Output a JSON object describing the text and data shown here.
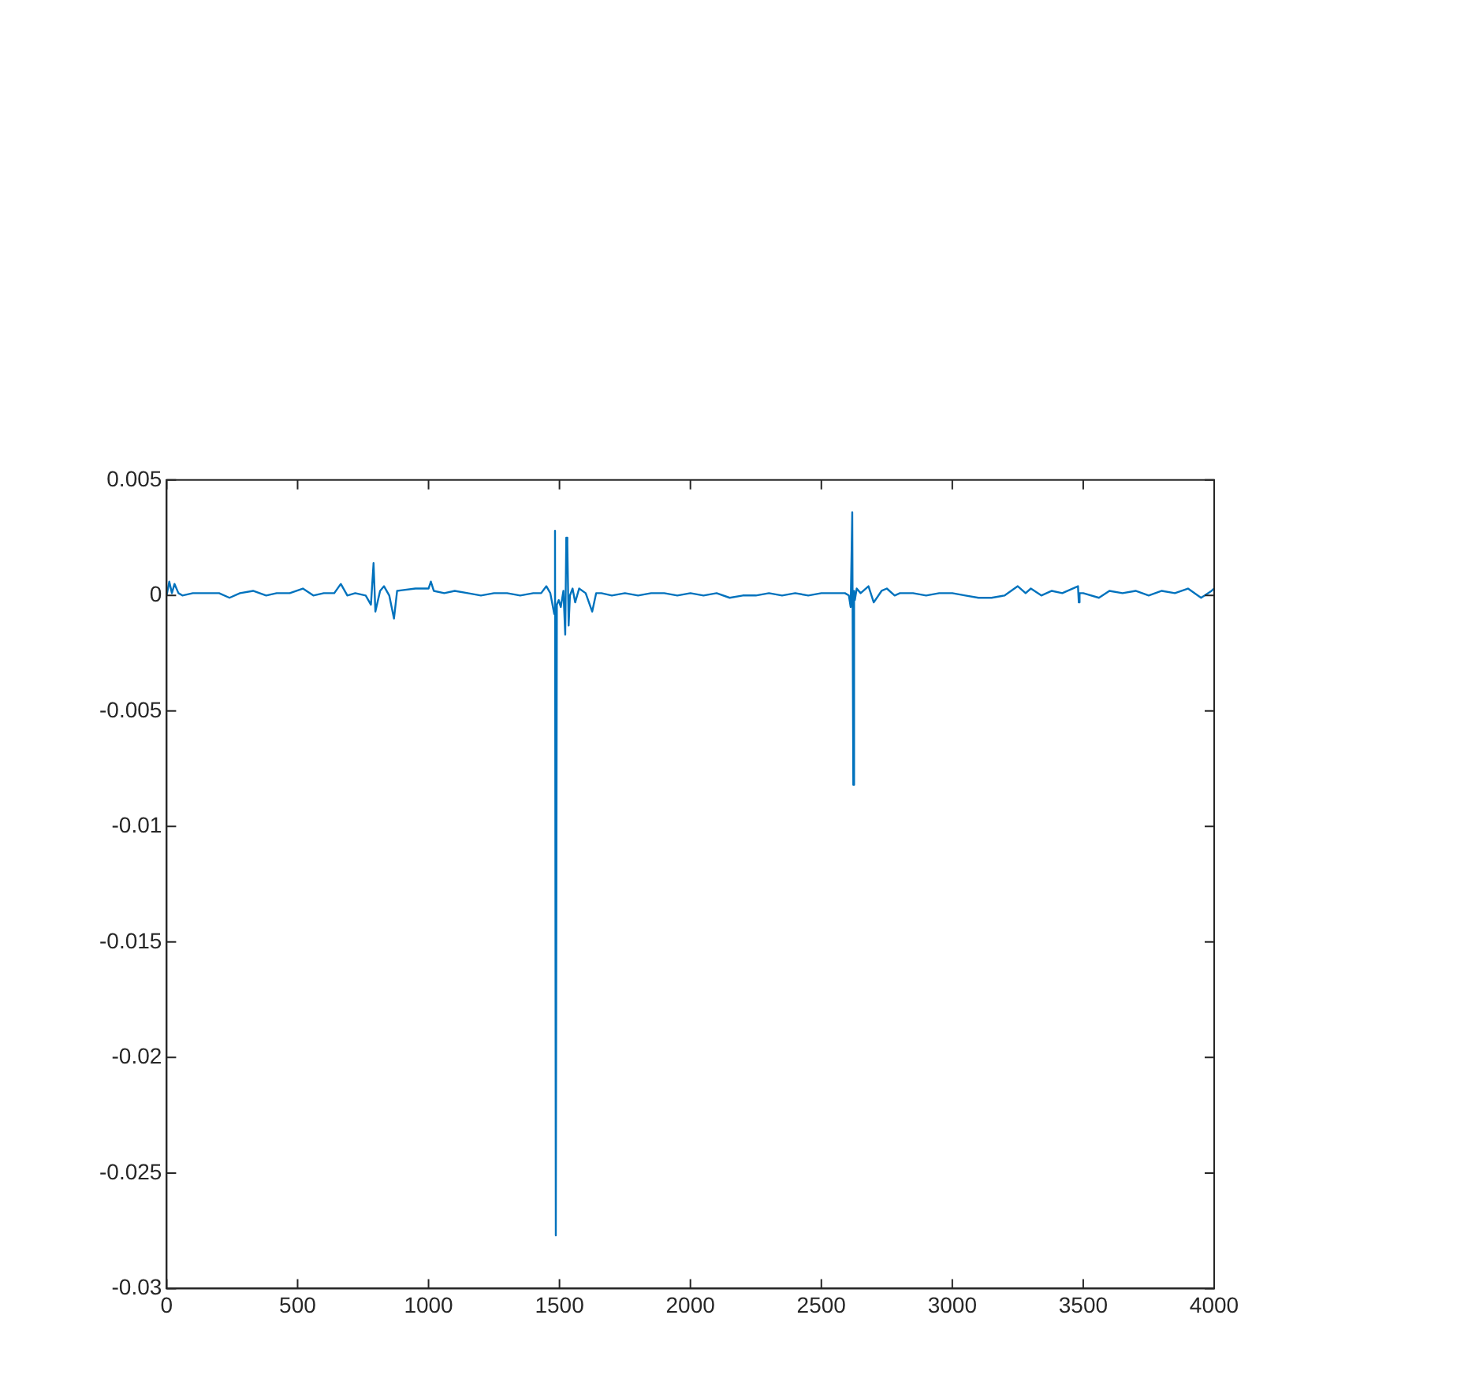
{
  "chart_data": {
    "type": "line",
    "xlim": [
      0,
      4000
    ],
    "ylim": [
      -0.03,
      0.005
    ],
    "xticks": [
      0,
      500,
      1000,
      1500,
      2000,
      2500,
      3000,
      3500,
      4000
    ],
    "yticks": [
      0.005,
      0,
      -0.005,
      -0.01,
      -0.015,
      -0.02,
      -0.025,
      -0.03
    ],
    "grid": false,
    "legend": false,
    "marker": "none",
    "line_style": "solid",
    "series": [
      {
        "color": "#0072bd",
        "x": [
          0,
          10,
          20,
          30,
          45,
          60,
          100,
          150,
          200,
          240,
          280,
          330,
          380,
          420,
          470,
          520,
          560,
          600,
          640,
          665,
          690,
          720,
          760,
          780,
          790,
          797,
          815,
          830,
          850,
          868,
          880,
          950,
          1000,
          1009,
          1020,
          1060,
          1100,
          1150,
          1200,
          1250,
          1300,
          1350,
          1400,
          1430,
          1450,
          1465,
          1475,
          1480,
          1483,
          1486,
          1490,
          1497,
          1505,
          1515,
          1522,
          1526,
          1530,
          1535,
          1540,
          1550,
          1560,
          1575,
          1600,
          1625,
          1640,
          1660,
          1700,
          1750,
          1800,
          1850,
          1900,
          1950,
          2000,
          2050,
          2100,
          2150,
          2200,
          2250,
          2300,
          2350,
          2400,
          2450,
          2500,
          2560,
          2590,
          2605,
          2612,
          2618,
          2622,
          2625,
          2628,
          2635,
          2650,
          2680,
          2700,
          2730,
          2750,
          2780,
          2800,
          2850,
          2900,
          2950,
          3000,
          3050,
          3100,
          3150,
          3200,
          3250,
          3280,
          3300,
          3340,
          3380,
          3420,
          3480,
          3483,
          3486,
          3500,
          3560,
          3600,
          3650,
          3700,
          3750,
          3800,
          3850,
          3900,
          3950,
          3990,
          4000
        ],
        "values": [
          0,
          0.0006,
          0.0001,
          0.0005,
          0.0001,
          0,
          0.0001,
          0.0001,
          0.0001,
          -0.0001,
          0.0001,
          0.0002,
          0,
          0.0001,
          0.0001,
          0.0003,
          0,
          0.0001,
          0.0001,
          0.0005,
          0,
          0.0001,
          0,
          -0.0004,
          0.0014,
          -0.0007,
          0.0002,
          0.0004,
          0,
          -0.001,
          0.0002,
          0.0003,
          0.0003,
          0.0006,
          0.0002,
          0.0001,
          0.0002,
          0.0001,
          0,
          0.0001,
          0.0001,
          0,
          0.0001,
          0.0001,
          0.0004,
          0.0001,
          -0.0005,
          -0.0008,
          0.0028,
          -0.0277,
          -0.0004,
          -0.0002,
          -0.0005,
          0.0002,
          -0.0017,
          0.0025,
          0.0022,
          -0.0013,
          0,
          0.0003,
          -0.0003,
          0.0003,
          0.0001,
          -0.0007,
          0.0001,
          0.0001,
          0,
          0.0001,
          0,
          0.0001,
          0.0001,
          0,
          0.0001,
          0,
          0.0001,
          -0.0001,
          0,
          0,
          0.0001,
          0,
          0.0001,
          0,
          0.0001,
          0.0001,
          0.0001,
          0,
          -0.0005,
          0.0036,
          -0.0082,
          0.0002,
          -0.0002,
          0.0003,
          0.0001,
          0.0004,
          -0.0003,
          0.0002,
          0.0003,
          0,
          0.0001,
          0.0001,
          0,
          0.0001,
          0.0001,
          0,
          -0.0001,
          -0.0001,
          0,
          0.0004,
          0.0001,
          0.0003,
          0,
          0.0002,
          0.0001,
          0.0004,
          -0.0003,
          0.0001,
          0.0001,
          -0.0001,
          0.0002,
          0.0001,
          0.0002,
          0,
          0.0002,
          0.0001,
          0.0003,
          -0.0001,
          0.0002,
          0.0003
        ]
      }
    ]
  }
}
